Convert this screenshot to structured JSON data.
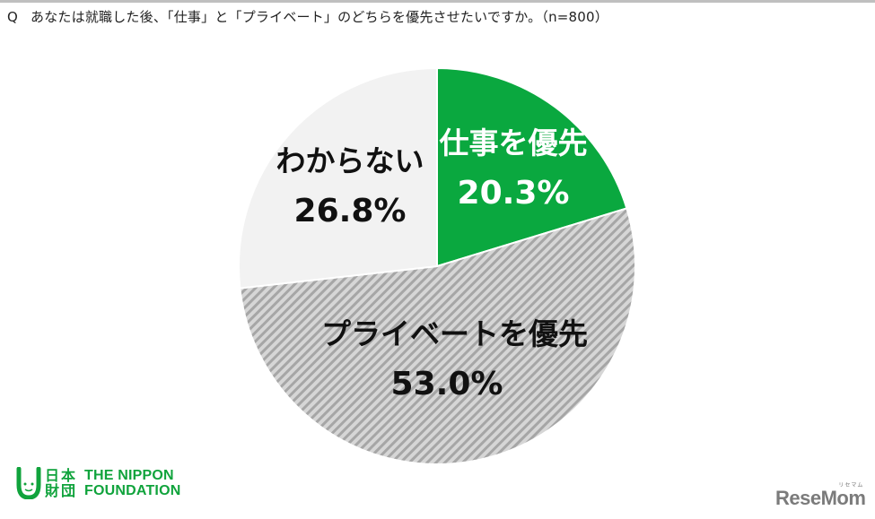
{
  "header": {
    "q_marker": "Q",
    "question": "あなたは就職した後、「仕事」と「プライベート」のどちらを優先させたいですか。（n=800）"
  },
  "colors": {
    "work": "#0aa83f",
    "private_base": "#d6d6d6",
    "private_hatch": "#a6a6a6",
    "unknown": "#f2f2f2",
    "top_rule": "#bfbfbf",
    "brand_green": "#10a33c",
    "resemom_gray": "#7b7b7b"
  },
  "chart_data": {
    "type": "pie",
    "title": "あなたは就職した後、「仕事」と「プライベート」のどちらを優先させたいですか。（n=800）",
    "n": 800,
    "start_angle": "12 o'clock, clockwise",
    "slices": [
      {
        "label": "仕事を優先",
        "value": 20.3,
        "display": "20.3%",
        "color": "#0aa83f",
        "pattern": "solid"
      },
      {
        "label": "プライベートを優先",
        "value": 53.0,
        "display": "53.0%",
        "color": "#d6d6d6",
        "pattern": "diagonal-hatch"
      },
      {
        "label": "わからない",
        "value": 26.8,
        "display": "26.8%",
        "color": "#f2f2f2",
        "pattern": "solid"
      }
    ],
    "legend": "none (labels inside slices)"
  },
  "labels": {
    "work": {
      "name": "仕事を優先",
      "pct": "20.3%"
    },
    "private": {
      "name": "プライベートを優先",
      "pct": "53.0%"
    },
    "unknown": {
      "name": "わからない",
      "pct": "26.8%"
    }
  },
  "footer": {
    "nippon_kanji": [
      "日",
      "本",
      "財",
      "団"
    ],
    "nippon_en_line1": "THE NIPPON",
    "nippon_en_line2": "FOUNDATION",
    "resemom": "ReseMom",
    "resemom_sub": "リセマム"
  }
}
